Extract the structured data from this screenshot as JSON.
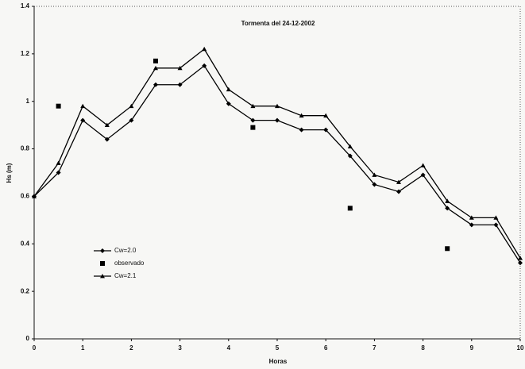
{
  "chart_data": {
    "type": "line",
    "title": "Tormenta del 24-12-2002",
    "xlabel": "Horas",
    "ylabel": "Hs (m)",
    "xlim": [
      0,
      10
    ],
    "xticks": [
      0,
      1,
      2,
      3,
      4,
      5,
      6,
      7,
      8,
      9,
      10
    ],
    "ylim": [
      0,
      1.4
    ],
    "yticks": [
      0,
      0.2,
      0.4,
      0.6,
      0.8,
      1,
      1.2,
      1.4
    ],
    "grid": false,
    "legend": "lower-left",
    "series": [
      {
        "name": "Cw=2.0",
        "color": "#000000",
        "marker": "diamond",
        "mode": "lines+markers",
        "x": [
          0,
          0.5,
          1,
          1.5,
          2,
          2.5,
          3,
          3.5,
          4,
          4.5,
          5,
          5.5,
          6,
          6.5,
          7,
          7.5,
          8,
          8.5,
          9,
          9.5,
          10
        ],
        "values": [
          0.6,
          0.7,
          0.92,
          0.84,
          0.92,
          1.07,
          1.07,
          1.15,
          0.99,
          0.92,
          0.92,
          0.88,
          0.88,
          0.77,
          0.65,
          0.62,
          0.69,
          0.55,
          0.48,
          0.48,
          0.32
        ]
      },
      {
        "name": "observado",
        "color": "#000000",
        "marker": "square",
        "mode": "markers",
        "x": [
          0.5,
          2.5,
          4.5,
          6.5,
          8.5
        ],
        "values": [
          0.98,
          1.17,
          0.89,
          0.55,
          0.38
        ]
      },
      {
        "name": "Cw=2.1",
        "color": "#000000",
        "marker": "triangle",
        "mode": "lines+markers",
        "x": [
          0,
          0.5,
          1,
          1.5,
          2,
          2.5,
          3,
          3.5,
          4,
          4.5,
          5,
          5.5,
          6,
          6.5,
          7,
          7.5,
          8,
          8.5,
          9,
          9.5,
          10
        ],
        "values": [
          0.6,
          0.74,
          0.98,
          0.9,
          0.98,
          1.14,
          1.14,
          1.22,
          1.05,
          0.98,
          0.98,
          0.94,
          0.94,
          0.81,
          0.69,
          0.66,
          0.73,
          0.58,
          0.51,
          0.51,
          0.34
        ]
      }
    ]
  }
}
